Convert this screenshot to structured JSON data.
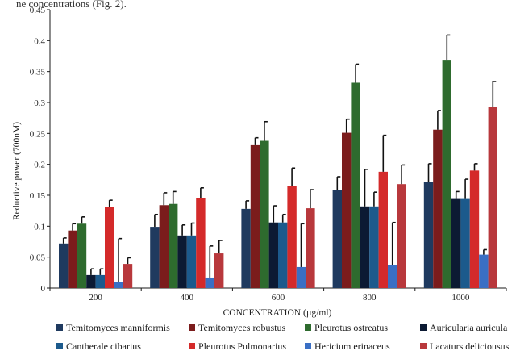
{
  "header_text": "ne concentrations (Fig. 2).",
  "chart_data": {
    "type": "bar",
    "xlabel": "CONCENTRATION (µg/ml)",
    "ylabel": "Reductive power (700nM)",
    "ylim": [
      0,
      0.45
    ],
    "yticks": [
      0,
      0.05,
      0.1,
      0.15,
      0.2,
      0.25,
      0.3,
      0.35,
      0.4,
      0.45
    ],
    "ytick_labels": [
      "0",
      "0.05",
      "0.1",
      "0.15",
      "0.2",
      "0.25",
      "0.3",
      "0.35",
      "0.4",
      "0.45"
    ],
    "categories": [
      "200",
      "400",
      "600",
      "800",
      "1000"
    ],
    "legend_position": "bottom",
    "series": [
      {
        "name": "Temitomyces manniformis",
        "color": "#1f3a5f",
        "values": [
          0.072,
          0.099,
          0.128,
          0.158,
          0.171
        ],
        "errors": [
          0.009,
          0.02,
          0.013,
          0.022,
          0.03
        ]
      },
      {
        "name": "Temitomyces robustus",
        "color": "#7b1c1c",
        "values": [
          0.093,
          0.134,
          0.231,
          0.251,
          0.256
        ],
        "errors": [
          0.011,
          0.02,
          0.012,
          0.022,
          0.031
        ]
      },
      {
        "name": "Pleurotus ostreatus",
        "color": "#2e6b2e",
        "values": [
          0.104,
          0.136,
          0.238,
          0.332,
          0.369
        ],
        "errors": [
          0.011,
          0.02,
          0.031,
          0.03,
          0.04
        ]
      },
      {
        "name": "Auricularia auricula",
        "color": "#0c1a33",
        "values": [
          0.021,
          0.085,
          0.106,
          0.132,
          0.144
        ],
        "errors": [
          0.01,
          0.017,
          0.027,
          0.06,
          0.012
        ]
      },
      {
        "name": "Cantherale cibarius",
        "color": "#1c5a8c",
        "values": [
          0.021,
          0.085,
          0.106,
          0.132,
          0.144
        ],
        "errors": [
          0.01,
          0.02,
          0.013,
          0.023,
          0.032
        ]
      },
      {
        "name": "Pleurotus Pulmonarius",
        "color": "#d42a2a",
        "values": [
          0.131,
          0.146,
          0.165,
          0.188,
          0.19
        ],
        "errors": [
          0.011,
          0.016,
          0.029,
          0.059,
          0.011
        ]
      },
      {
        "name": "Hericium erinaceus",
        "color": "#3a6fc4",
        "values": [
          0.01,
          0.017,
          0.034,
          0.037,
          0.054
        ],
        "errors": [
          0.07,
          0.051,
          0.07,
          0.069,
          0.008
        ]
      },
      {
        "name": "Lacaturs deliciousus",
        "color": "#b8383c",
        "values": [
          0.039,
          0.056,
          0.129,
          0.168,
          0.293
        ],
        "errors": [
          0.01,
          0.021,
          0.03,
          0.031,
          0.041
        ]
      }
    ]
  }
}
